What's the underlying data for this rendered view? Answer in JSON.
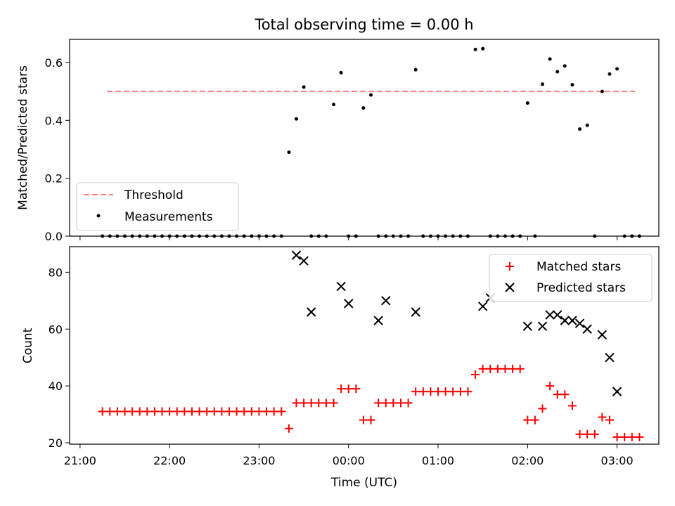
{
  "chart_data": [
    {
      "type": "scatter",
      "title": "Total observing time = 0.00 h",
      "ylabel": "Matched/Predicted stars",
      "xlabel": "",
      "ylim": [
        0,
        0.68
      ],
      "yticks": [
        "0.0",
        "0.2",
        "0.4",
        "0.6"
      ],
      "grid": false,
      "legend_position": "lower-left",
      "threshold": {
        "name": "Threshold",
        "value": 0.5,
        "color": "#ff7f7f",
        "x_range": [
          "21:18",
          "03:12"
        ]
      },
      "series": [
        {
          "name": "Measurements",
          "color": "#000000",
          "marker": "dot",
          "x": [
            "21:15",
            "21:20",
            "21:25",
            "21:30",
            "21:35",
            "21:40",
            "21:45",
            "21:50",
            "21:55",
            "22:00",
            "22:05",
            "22:10",
            "22:15",
            "22:20",
            "22:25",
            "22:30",
            "22:35",
            "22:40",
            "22:45",
            "22:50",
            "22:55",
            "23:00",
            "23:05",
            "23:10",
            "23:15",
            "23:20",
            "23:25",
            "23:30",
            "23:35",
            "23:40",
            "23:45",
            "23:50",
            "23:55",
            "00:00",
            "00:05",
            "00:10",
            "00:15",
            "00:20",
            "00:25",
            "00:30",
            "00:35",
            "00:40",
            "00:45",
            "00:50",
            "00:55",
            "01:00",
            "01:05",
            "01:10",
            "01:15",
            "01:20",
            "01:25",
            "01:30",
            "01:35",
            "01:40",
            "01:45",
            "01:50",
            "01:55",
            "02:00",
            "02:05",
            "02:10",
            "02:15",
            "02:20",
            "02:25",
            "02:30",
            "02:35",
            "02:40",
            "02:45",
            "02:50",
            "02:55",
            "03:00",
            "03:05",
            "03:10",
            "03:15"
          ],
          "y": [
            0,
            0,
            0,
            0,
            0,
            0,
            0,
            0,
            0,
            0,
            0,
            0,
            0,
            0,
            0,
            0,
            0,
            0,
            0,
            0,
            0,
            0,
            0,
            0,
            0,
            0.29,
            0.405,
            0.515,
            0,
            0,
            0,
            0.455,
            0.565,
            0,
            0,
            0.443,
            0.488,
            0,
            0,
            0,
            0,
            0,
            0.575,
            0,
            0,
            0,
            0,
            0,
            0,
            0,
            0.645,
            0.648,
            0,
            0,
            0,
            0,
            0,
            0.46,
            0,
            0.525,
            0.612,
            0.568,
            0.588,
            0.523,
            0.37,
            0.383,
            0,
            0.5,
            0.56,
            0.578,
            0,
            0,
            0
          ]
        }
      ]
    },
    {
      "type": "scatter",
      "title": "",
      "ylabel": "Count",
      "xlabel": "Time (UTC)",
      "ylim": [
        19.5,
        89
      ],
      "yticks": [
        "20",
        "40",
        "60",
        "80"
      ],
      "xticks": [
        "21:00",
        "22:00",
        "23:00",
        "00:00",
        "01:00",
        "02:00",
        "03:00"
      ],
      "grid": false,
      "legend_position": "upper-right",
      "series": [
        {
          "name": "Matched stars",
          "color": "#ff0000",
          "marker": "plus",
          "x": [
            "21:15",
            "21:20",
            "21:25",
            "21:30",
            "21:35",
            "21:40",
            "21:45",
            "21:50",
            "21:55",
            "22:00",
            "22:05",
            "22:10",
            "22:15",
            "22:20",
            "22:25",
            "22:30",
            "22:35",
            "22:40",
            "22:45",
            "22:50",
            "22:55",
            "23:00",
            "23:05",
            "23:10",
            "23:15",
            "23:20",
            "23:25",
            "23:30",
            "23:35",
            "23:40",
            "23:45",
            "23:50",
            "23:55",
            "00:00",
            "00:05",
            "00:10",
            "00:15",
            "00:20",
            "00:25",
            "00:30",
            "00:35",
            "00:40",
            "00:45",
            "00:50",
            "00:55",
            "01:00",
            "01:05",
            "01:10",
            "01:15",
            "01:20",
            "01:25",
            "01:30",
            "01:35",
            "01:40",
            "01:45",
            "01:50",
            "01:55",
            "02:00",
            "02:05",
            "02:10",
            "02:15",
            "02:20",
            "02:25",
            "02:30",
            "02:35",
            "02:40",
            "02:45",
            "02:50",
            "02:55",
            "03:00",
            "03:05",
            "03:10",
            "03:15"
          ],
          "y": [
            31,
            31,
            31,
            31,
            31,
            31,
            31,
            31,
            31,
            31,
            31,
            31,
            31,
            31,
            31,
            31,
            31,
            31,
            31,
            31,
            31,
            31,
            31,
            31,
            31,
            25,
            34,
            34,
            34,
            34,
            34,
            34,
            39,
            39,
            39,
            28,
            28,
            34,
            34,
            34,
            34,
            34,
            38,
            38,
            38,
            38,
            38,
            38,
            38,
            38,
            44,
            46,
            46,
            46,
            46,
            46,
            46,
            28,
            28,
            32,
            40,
            37,
            37,
            33,
            23,
            23,
            23,
            29,
            28,
            22,
            22,
            22,
            22
          ]
        },
        {
          "name": "Predicted stars",
          "color": "#000000",
          "marker": "x",
          "x": [
            "23:25",
            "23:30",
            "23:35",
            "23:55",
            "00:00",
            "00:20",
            "00:25",
            "00:45",
            "01:30",
            "01:35",
            "02:00",
            "02:10",
            "02:15",
            "02:20",
            "02:25",
            "02:30",
            "02:35",
            "02:40",
            "02:50",
            "02:55",
            "03:00"
          ],
          "y": [
            86,
            84,
            66,
            75,
            69,
            63,
            70,
            66,
            68,
            71,
            61,
            61,
            65,
            65,
            63,
            63,
            62,
            60,
            58,
            50,
            38
          ]
        }
      ]
    }
  ]
}
